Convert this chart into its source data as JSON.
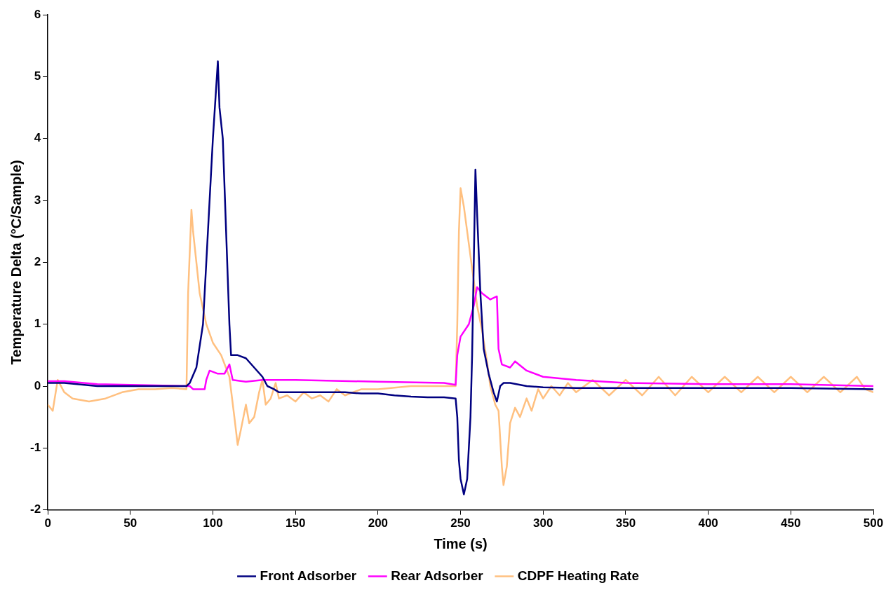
{
  "chart_data": {
    "type": "line",
    "xlabel": "Time (s)",
    "ylabel": "Temperature Delta (°C/Sample)",
    "xlim": [
      0,
      500
    ],
    "xticks": [
      0,
      50,
      100,
      150,
      200,
      250,
      300,
      350,
      400,
      450,
      500
    ],
    "ylim": [
      -2,
      6
    ],
    "yticks": [
      -2,
      -1,
      0,
      1,
      2,
      3,
      4,
      5,
      6
    ],
    "grid": false,
    "legend": "bottom",
    "marker": "none",
    "line_style": "solid",
    "series": [
      {
        "name": "Front Adsorber",
        "color": "#000080",
        "x": [
          0,
          10,
          30,
          50,
          84,
          86,
          90,
          94,
          97,
          100,
          103,
          104,
          106,
          108,
          110,
          111,
          115,
          120,
          125,
          130,
          133,
          137,
          140,
          150,
          160,
          170,
          180,
          190,
          200,
          210,
          220,
          230,
          240,
          247,
          248,
          249,
          250,
          252,
          254,
          256,
          257,
          258,
          259,
          260,
          262,
          264,
          267,
          270,
          272,
          274,
          276,
          280,
          290,
          300,
          320,
          340,
          400,
          450,
          500
        ],
        "values": [
          0.05,
          0.05,
          0,
          0,
          0,
          0.05,
          0.3,
          1,
          2.5,
          4,
          5.25,
          4.5,
          4,
          2.5,
          1,
          0.5,
          0.5,
          0.45,
          0.3,
          0.15,
          0,
          -0.05,
          -0.1,
          -0.1,
          -0.1,
          -0.1,
          -0.1,
          -0.12,
          -0.12,
          -0.15,
          -0.17,
          -0.18,
          -0.18,
          -0.2,
          -0.5,
          -1.2,
          -1.5,
          -1.75,
          -1.5,
          -0.5,
          0.5,
          2,
          3.5,
          2.8,
          1.5,
          0.6,
          0.2,
          -0.1,
          -0.25,
          0,
          0.05,
          0.05,
          0,
          -0.02,
          -0.03,
          -0.03,
          -0.03,
          -0.03,
          -0.05
        ]
      },
      {
        "name": "Rear Adsorber",
        "color": "#ff00ff",
        "x": [
          0,
          10,
          30,
          50,
          86,
          88,
          95,
          96,
          98,
          103,
          107,
          110,
          112,
          120,
          130,
          150,
          200,
          240,
          247,
          248,
          250,
          255,
          258,
          260,
          263,
          268,
          272,
          273,
          275,
          280,
          283,
          290,
          300,
          320,
          350,
          400,
          450,
          500
        ],
        "values": [
          0.08,
          0.08,
          0.03,
          0.02,
          0,
          -0.05,
          -0.05,
          0.1,
          0.25,
          0.2,
          0.2,
          0.35,
          0.1,
          0.07,
          0.1,
          0.1,
          0.07,
          0.05,
          0.02,
          0.5,
          0.8,
          1,
          1.3,
          1.6,
          1.5,
          1.4,
          1.45,
          0.6,
          0.35,
          0.3,
          0.4,
          0.25,
          0.15,
          0.1,
          0.05,
          0.03,
          0.03,
          0
        ]
      },
      {
        "name": "CDPF Heating Rate",
        "color": "#ffc080",
        "x": [
          0,
          3,
          6,
          10,
          15,
          25,
          35,
          45,
          55,
          65,
          75,
          84,
          85,
          87,
          88,
          92,
          96,
          100,
          105,
          110,
          113,
          115,
          117,
          120,
          122,
          125,
          128,
          130,
          132,
          135,
          138,
          140,
          145,
          150,
          155,
          160,
          165,
          170,
          175,
          180,
          190,
          200,
          220,
          247,
          248,
          249,
          250,
          252,
          255,
          260,
          263,
          266,
          268,
          271,
          273,
          275,
          276,
          278,
          280,
          283,
          286,
          290,
          293,
          297,
          300,
          305,
          310,
          315,
          320,
          330,
          340,
          350,
          360,
          370,
          380,
          390,
          400,
          410,
          420,
          430,
          440,
          450,
          460,
          470,
          480,
          490,
          495,
          500
        ],
        "values": [
          -0.3,
          -0.4,
          0.1,
          -0.1,
          -0.2,
          -0.25,
          -0.2,
          -0.1,
          -0.05,
          -0.05,
          -0.03,
          -0.05,
          1.5,
          2.85,
          2.5,
          1.5,
          1,
          0.7,
          0.5,
          0.15,
          -0.5,
          -0.95,
          -0.7,
          -0.3,
          -0.6,
          -0.5,
          -0.1,
          0.1,
          -0.3,
          -0.2,
          0.05,
          -0.2,
          -0.15,
          -0.25,
          -0.1,
          -0.2,
          -0.15,
          -0.25,
          -0.05,
          -0.15,
          -0.05,
          -0.05,
          0,
          0,
          1,
          2.5,
          3.2,
          2.9,
          2.3,
          1.3,
          0.9,
          0.4,
          0,
          -0.3,
          -0.4,
          -1.3,
          -1.6,
          -1.3,
          -0.6,
          -0.35,
          -0.5,
          -0.2,
          -0.4,
          -0.05,
          -0.2,
          0,
          -0.15,
          0.05,
          -0.1,
          0.1,
          -0.15,
          0.1,
          -0.15,
          0.15,
          -0.15,
          0.15,
          -0.1,
          0.15,
          -0.1,
          0.15,
          -0.1,
          0.15,
          -0.1,
          0.15,
          -0.1,
          0.15,
          -0.05,
          -0.1
        ]
      }
    ]
  }
}
